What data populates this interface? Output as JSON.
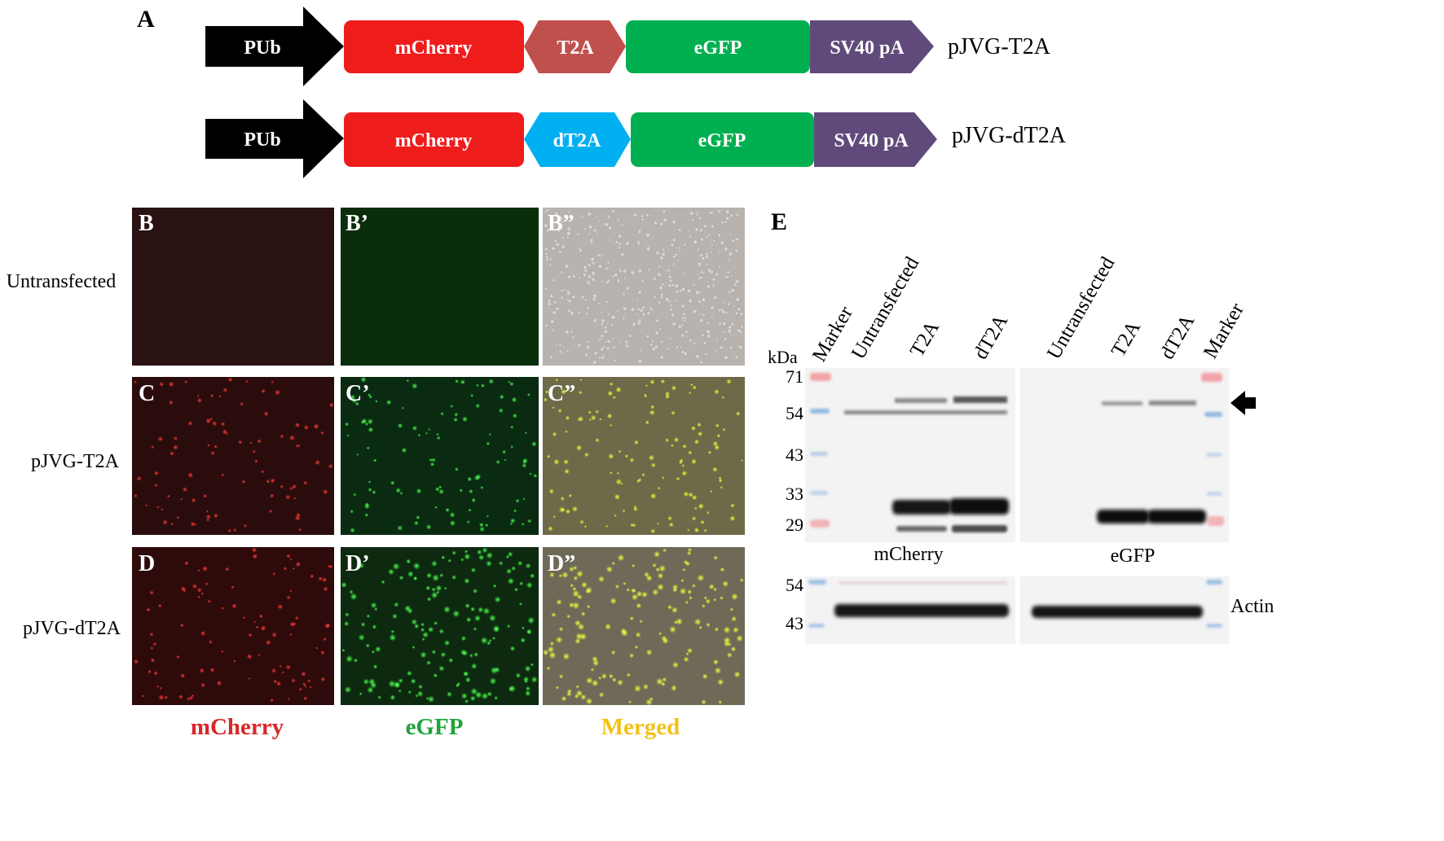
{
  "panel_a": {
    "label": "A",
    "constructs": [
      {
        "name": "pJVG-T2A",
        "elements": [
          {
            "label": "PUb",
            "color": "#000000"
          },
          {
            "label": "mCherry",
            "color": "#ef1c1c"
          },
          {
            "label": "T2A",
            "color": "#c0504d"
          },
          {
            "label": "eGFP",
            "color": "#00b050"
          },
          {
            "label": "SV40 pA",
            "color": "#604a7b"
          }
        ]
      },
      {
        "name": "pJVG-dT2A",
        "elements": [
          {
            "label": "PUb",
            "color": "#000000"
          },
          {
            "label": "mCherry",
            "color": "#ef1c1c"
          },
          {
            "label": "dT2A",
            "color": "#00b0f0"
          },
          {
            "label": "eGFP",
            "color": "#00b050"
          },
          {
            "label": "SV40 pA",
            "color": "#604a7b"
          }
        ]
      }
    ]
  },
  "microscopy": {
    "row_labels": [
      "Untransfected",
      "pJVG-T2A",
      "pJVG-dT2A"
    ],
    "panel_labels": [
      [
        "B",
        "B’",
        "B”"
      ],
      [
        "C",
        "C’",
        "C”"
      ],
      [
        "D",
        "D’",
        "D”"
      ]
    ],
    "column_labels": [
      {
        "text": "mCherry",
        "color": "#d9262b"
      },
      {
        "text": "eGFP",
        "color": "#1fa33a"
      },
      {
        "text": "Merged",
        "color": "#f2c21a"
      }
    ]
  },
  "panel_e": {
    "label": "E",
    "kda_label": "kDa",
    "lane_labels_left": [
      "Marker",
      "Untransfected",
      "T2A",
      "dT2A"
    ],
    "lane_labels_right": [
      "Untransfected",
      "T2A",
      "dT2A",
      "Marker"
    ],
    "mw_markers_top": [
      "71",
      "54",
      "43",
      "33",
      "29"
    ],
    "mw_markers_bottom": [
      "54",
      "43"
    ],
    "blot_labels": {
      "left": "mCherry",
      "right": "eGFP",
      "actin": "Actin"
    }
  }
}
